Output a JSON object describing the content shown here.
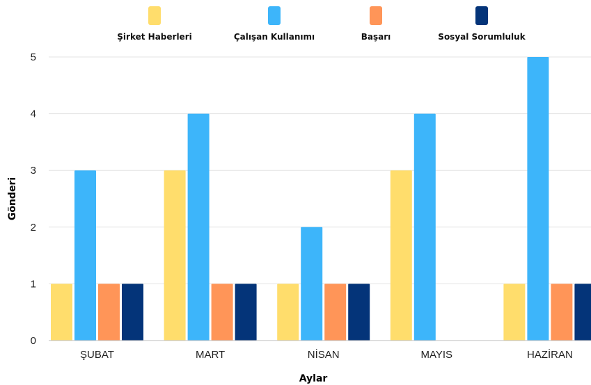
{
  "chart_data": {
    "type": "bar",
    "categories": [
      "ŞUBAT",
      "MART",
      "NİSAN",
      "MAYIS",
      "HAZİRAN"
    ],
    "series": [
      {
        "name": "Şirket Haberleri",
        "color": "#FFDD6C",
        "values": [
          1,
          3,
          1,
          3,
          1
        ]
      },
      {
        "name": "Çalışan Kullanımı",
        "color": "#3DB5FA",
        "values": [
          3,
          4,
          2,
          4,
          5
        ]
      },
      {
        "name": "Başarı",
        "color": "#FF9558",
        "values": [
          1,
          1,
          1,
          0,
          1
        ]
      },
      {
        "name": "Sosyal Sorumluluk",
        "color": "#043479",
        "values": [
          1,
          1,
          1,
          0,
          1
        ]
      }
    ],
    "xlabel": "Aylar",
    "ylabel": "Gönderi",
    "ylim": [
      0,
      5
    ],
    "yticks": [
      "0",
      "1",
      "2",
      "3",
      "4",
      "5"
    ],
    "grid": true,
    "legend_position": "top"
  }
}
